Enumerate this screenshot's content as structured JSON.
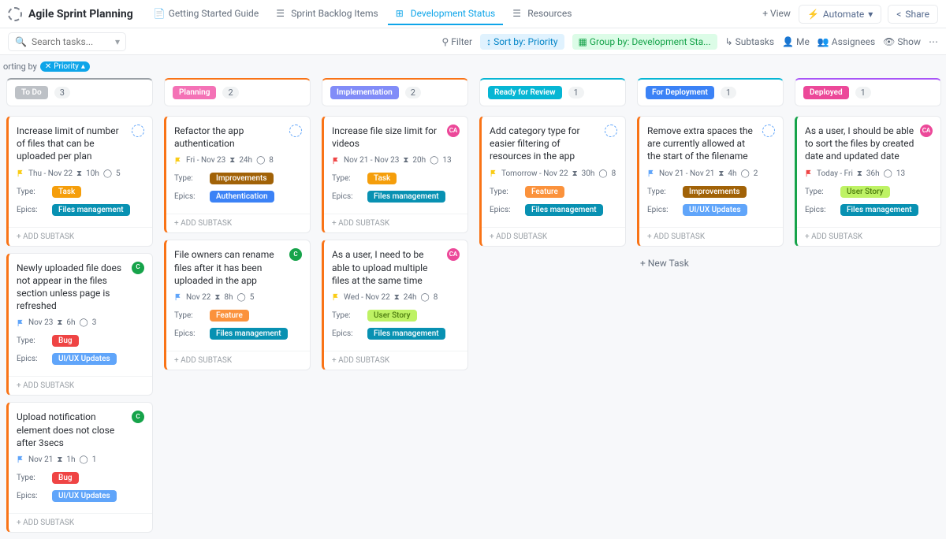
{
  "header": {
    "title": "Agile Sprint Planning",
    "tabs": [
      {
        "label": "Getting Started Guide",
        "active": false
      },
      {
        "label": "Sprint Backlog Items",
        "active": false
      },
      {
        "label": "Development Status",
        "active": true
      },
      {
        "label": "Resources",
        "active": false
      }
    ],
    "addView": "+ View",
    "automate": "Automate",
    "share": "Share"
  },
  "filterBar": {
    "searchPlaceholder": "Search tasks...",
    "filter": "Filter",
    "sort": "Sort by: Priority",
    "group": "Group by: Development Sta...",
    "subtasks": "Subtasks",
    "me": "Me",
    "assignees": "Assignees",
    "show": "Show"
  },
  "sortingBy": {
    "label": "orting by",
    "tag": "Priority"
  },
  "addSubtaskLabel": "+ ADD SUBTASK",
  "newTaskLabel": "+ New Task",
  "typeLabel": "Type:",
  "epicsLabel": "Epics:",
  "colors": {
    "todo_border": "#9aa0a6",
    "todo_pill": "#bdc1c6",
    "planning_border": "#f97316",
    "planning_pill": "#f472b6",
    "impl_border": "#f97316",
    "impl_pill": "#818cf8",
    "review_border": "#06b6d4",
    "review_pill": "#06b6d4",
    "deploy_border": "#06b6d4",
    "deploy_pill": "#3b82f6",
    "deployed_border": "#a855f7",
    "deployed_pill": "#ec4899",
    "tag_task": "#f59e0b",
    "tag_bug": "#ef4444",
    "tag_feature": "#fb923c",
    "tag_improvements": "#a16207",
    "tag_userstory": "#bef264",
    "tag_userstory_text": "#4d7c0f",
    "tag_files": "#0891b2",
    "tag_auth": "#3b82f6",
    "tag_uiux": "#60a5fa",
    "flag_yellow": "#facc15",
    "flag_blue": "#60a5fa",
    "flag_red": "#ef4444",
    "avatar_dashed": "dashed",
    "avatar_ca": "#ec4899",
    "avatar_cp": "#16a34a"
  },
  "columns": [
    {
      "id": "todo",
      "label": "To Do",
      "count": "3",
      "pillBg": "#bdc1c6",
      "border": "#9aa0a6",
      "cards": [
        {
          "title": "Increase limit of number of files that can be uploaded per plan",
          "avatar": "dashed",
          "flag": "#facc15",
          "date": "Thu  -  Nov 22",
          "est": "10h",
          "pts": "5",
          "type": {
            "text": "Task",
            "bg": "#f59e0b"
          },
          "epic": {
            "text": "Files management",
            "bg": "#0891b2"
          },
          "leftBorder": "#f97316"
        },
        {
          "title": "Newly uploaded file does not appear in the files section unless page is refreshed",
          "avatar": "cp",
          "flag": "#60a5fa",
          "date": "Nov 23",
          "est": "6h",
          "pts": "3",
          "type": {
            "text": "Bug",
            "bg": "#ef4444"
          },
          "epic": {
            "text": "UI/UX Updates",
            "bg": "#60a5fa"
          },
          "leftBorder": "#f97316"
        },
        {
          "title": "Upload notification element does not close after 3secs",
          "avatar": "cp",
          "flag": "#60a5fa",
          "date": "Nov 21",
          "est": "1h",
          "pts": "1",
          "type": {
            "text": "Bug",
            "bg": "#ef4444"
          },
          "epic": {
            "text": "UI/UX Updates",
            "bg": "#60a5fa"
          },
          "leftBorder": "#f97316"
        }
      ]
    },
    {
      "id": "planning",
      "label": "Planning",
      "count": "2",
      "pillBg": "#f472b6",
      "border": "#f97316",
      "cards": [
        {
          "title": "Refactor the app authentication",
          "avatar": "dashed",
          "flag": "#facc15",
          "date": "Fri  -  Nov 23",
          "est": "24h",
          "pts": "8",
          "type": {
            "text": "Improvements",
            "bg": "#a16207"
          },
          "epic": {
            "text": "Authentication",
            "bg": "#3b82f6"
          },
          "leftBorder": "#f97316"
        },
        {
          "title": "File owners can rename files after it has been uploaded in the app",
          "avatar": "cp",
          "flag": "#60a5fa",
          "date": "Nov 22",
          "est": "8h",
          "pts": "5",
          "type": {
            "text": "Feature",
            "bg": "#fb923c"
          },
          "epic": {
            "text": "Files management",
            "bg": "#0891b2"
          },
          "leftBorder": "#f97316"
        }
      ]
    },
    {
      "id": "impl",
      "label": "Implementation",
      "count": "2",
      "pillBg": "#818cf8",
      "border": "#f97316",
      "cards": [
        {
          "title": "Increase file size limit for videos",
          "avatar": "ca",
          "flag": "#ef4444",
          "date": "Nov 21  -  Nov 23",
          "est": "20h",
          "pts": "13",
          "type": {
            "text": "Task",
            "bg": "#f59e0b"
          },
          "epic": {
            "text": "Files management",
            "bg": "#0891b2"
          },
          "leftBorder": "#f97316"
        },
        {
          "title": "As a user, I need to be able to upload multiple files at the same time",
          "avatar": "ca",
          "flag": "#facc15",
          "date": "Wed  -  Nov 22",
          "est": "24h",
          "pts": "8",
          "type": {
            "text": "User Story",
            "bg": "#bef264",
            "fg": "#4d7c0f"
          },
          "epic": {
            "text": "Files management",
            "bg": "#0891b2"
          },
          "leftBorder": "#f97316"
        }
      ]
    },
    {
      "id": "review",
      "label": "Ready for Review",
      "count": "1",
      "pillBg": "#06b6d4",
      "border": "#06b6d4",
      "cards": [
        {
          "title": "Add category type for easier filtering of resources in the app",
          "avatar": "dashed",
          "flag": "#facc15",
          "date": "Tomorrow  -  Nov 22",
          "est": "30h",
          "pts": "8",
          "type": {
            "text": "Feature",
            "bg": "#fb923c"
          },
          "epic": {
            "text": "Files management",
            "bg": "#0891b2"
          },
          "leftBorder": "#f97316"
        }
      ]
    },
    {
      "id": "deploy",
      "label": "For Deployment",
      "count": "1",
      "pillBg": "#3b82f6",
      "border": "#06b6d4",
      "cards": [
        {
          "title": "Remove extra spaces the are currently allowed at the start of the filename",
          "avatar": "dashed",
          "flag": "#60a5fa",
          "date": "Nov 21  -  Nov 21",
          "est": "4h",
          "pts": "2",
          "type": {
            "text": "Improvements",
            "bg": "#a16207"
          },
          "epic": {
            "text": "UI/UX Updates",
            "bg": "#60a5fa"
          },
          "leftBorder": "#f97316"
        }
      ],
      "showNewTask": true
    },
    {
      "id": "deployed",
      "label": "Deployed",
      "count": "1",
      "pillBg": "#ec4899",
      "border": "#a855f7",
      "cards": [
        {
          "title": "As a user, I should be able to sort the files by created date and updated date",
          "avatar": "ca",
          "flag": "#ef4444",
          "date": "Today  -  Fri",
          "est": "36h",
          "pts": "13",
          "type": {
            "text": "User Story",
            "bg": "#bef264",
            "fg": "#4d7c0f"
          },
          "epic": {
            "text": "Files management",
            "bg": "#0891b2"
          },
          "leftBorder": "#16a34a"
        }
      ]
    }
  ]
}
